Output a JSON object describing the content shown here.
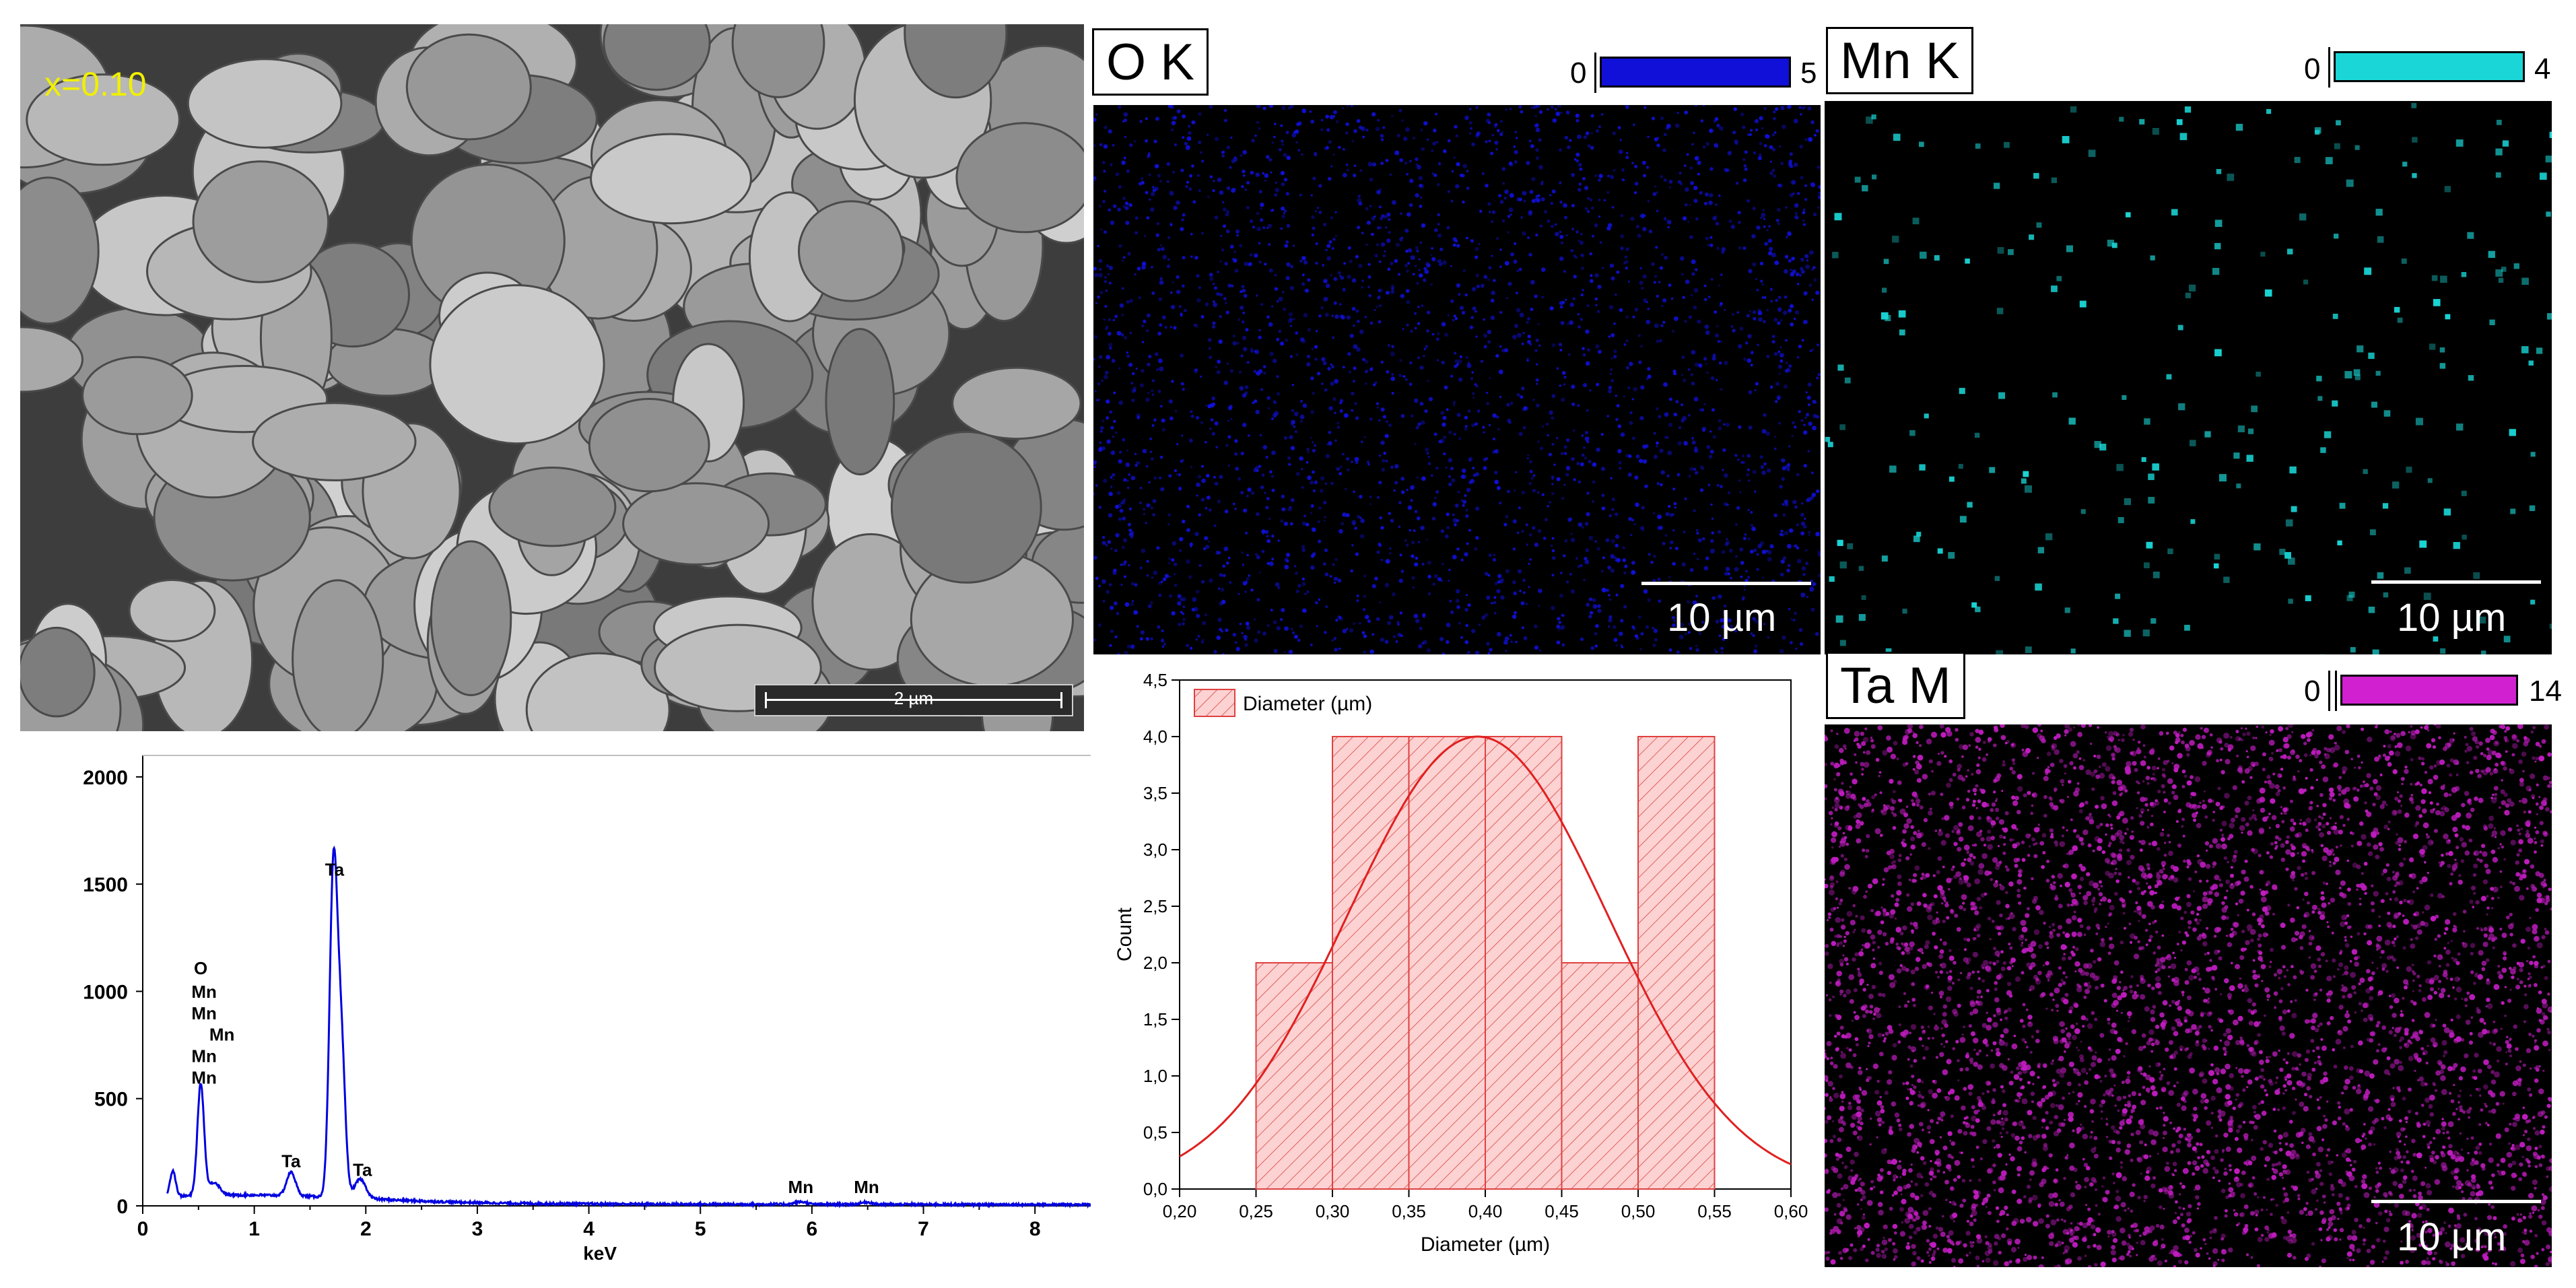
{
  "sem": {
    "label": "x=0.10",
    "scale_bar_label": "2 µm",
    "colors": {
      "label": "#f0f000",
      "background": "#3d3d3d",
      "grain": "#9a9a9a"
    }
  },
  "maps": [
    {
      "id": "o",
      "label": "O K",
      "cmin": "0",
      "cmax": "5",
      "color": "#1010d8",
      "scale": "10 µm"
    },
    {
      "id": "mn",
      "label": "Mn K",
      "cmin": "0",
      "cmax": "4",
      "color": "#1ad6d6",
      "scale": "10 µm"
    },
    {
      "id": "ta",
      "label": "Ta M",
      "cmin": "0",
      "cmax": "14",
      "color": "#c01cc0",
      "scale": "10 µm"
    }
  ],
  "chart_data": [
    {
      "type": "line",
      "xlabel": "keV",
      "ylabel": "",
      "xlim": [
        0,
        8.5
      ],
      "ylim": [
        0,
        2100
      ],
      "xticks": [
        "0",
        "1",
        "2",
        "3",
        "4",
        "5",
        "6",
        "7",
        "8"
      ],
      "yticks": [
        "0",
        "500",
        "1000",
        "1500",
        "2000"
      ],
      "color": "#0000e0",
      "peaks": [
        {
          "x": 0.27,
          "y": 120,
          "w": 0.025
        },
        {
          "x": 0.52,
          "y": 520,
          "w": 0.03
        },
        {
          "x": 0.64,
          "y": 60,
          "w": 0.05
        },
        {
          "x": 1.33,
          "y": 110,
          "w": 0.04
        },
        {
          "x": 1.71,
          "y": 1520,
          "w": 0.035
        },
        {
          "x": 1.78,
          "y": 700,
          "w": 0.035
        },
        {
          "x": 1.95,
          "y": 90,
          "w": 0.05
        },
        {
          "x": 5.9,
          "y": 12,
          "w": 0.05
        },
        {
          "x": 6.49,
          "y": 10,
          "w": 0.05
        }
      ],
      "annotations": [
        {
          "text": "Ta",
          "x": 1.72,
          "y": 1540
        },
        {
          "text": "O",
          "x": 0.52,
          "y": 1080
        },
        {
          "text": "Mn",
          "x": 0.55,
          "y": 970
        },
        {
          "text": "Mn",
          "x": 0.55,
          "y": 870
        },
        {
          "text": "Mn",
          "x": 0.71,
          "y": 770
        },
        {
          "text": "Mn",
          "x": 0.55,
          "y": 670
        },
        {
          "text": "Mn",
          "x": 0.55,
          "y": 570
        },
        {
          "text": "Ta",
          "x": 1.33,
          "y": 180
        },
        {
          "text": "Ta",
          "x": 1.97,
          "y": 140
        },
        {
          "text": "Mn",
          "x": 5.9,
          "y": 60
        },
        {
          "text": "Mn",
          "x": 6.49,
          "y": 60
        }
      ]
    },
    {
      "type": "bar",
      "xlabel": "Diameter (µm)",
      "ylabel": "Count",
      "xlim": [
        0.2,
        0.6
      ],
      "ylim": [
        0,
        4.5
      ],
      "xticks": [
        "0,20",
        "0,25",
        "0,30",
        "0,35",
        "0,40",
        "0,45",
        "0,50",
        "0,55",
        "0,60"
      ],
      "yticks": [
        "0,0",
        "0,5",
        "1,0",
        "1,5",
        "2,0",
        "2,5",
        "3,0",
        "3,5",
        "4,0",
        "4,5"
      ],
      "bins": [
        {
          "x0": 0.25,
          "x1": 0.3,
          "count": 2
        },
        {
          "x0": 0.3,
          "x1": 0.35,
          "count": 4
        },
        {
          "x0": 0.35,
          "x1": 0.4,
          "count": 4
        },
        {
          "x0": 0.4,
          "x1": 0.45,
          "count": 4
        },
        {
          "x0": 0.45,
          "x1": 0.5,
          "count": 2
        },
        {
          "x0": 0.5,
          "x1": 0.55,
          "count": 4
        }
      ],
      "fit": {
        "type": "normal",
        "mean": 0.395,
        "sigma": 0.085,
        "peak": 4.0
      },
      "legend": "Diameter (µm)",
      "legend_position": "top-left",
      "colors": {
        "bar_fill": "#fcd2d2",
        "bar_edge": "#e04040",
        "fit": "#e02020"
      }
    }
  ]
}
